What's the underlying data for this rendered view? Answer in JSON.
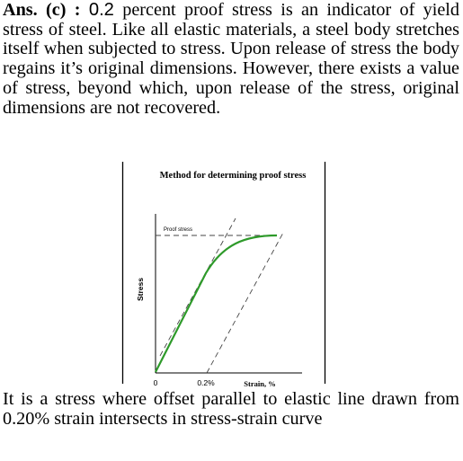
{
  "answer": {
    "prefix": "Ans. (c) :",
    "lead_value": "0.2",
    "text_rest": " percent proof stress is an indicator of yield stress of steel. Like all elastic materials, a steel body stretches itself when subjected to stress. Upon release of stress the body regains it’s original dimensions. However, there exists a value of stress, beyond which, upon release of the stress, original dimensions are not recovered."
  },
  "figure": {
    "title": "Method for determining proof stress",
    "proof_label": "Proof stress",
    "y_label": "Stress",
    "x_label": "Strain, %",
    "origin_label": "0",
    "offset_label": "0.2%",
    "colors": {
      "curve": "#2e9a2a",
      "axis": "#000000",
      "dash": "#444444"
    }
  },
  "explanation": {
    "text": "It is a stress where offset parallel to elastic line drawn from 0.20% strain intersects in stress-strain curve"
  }
}
